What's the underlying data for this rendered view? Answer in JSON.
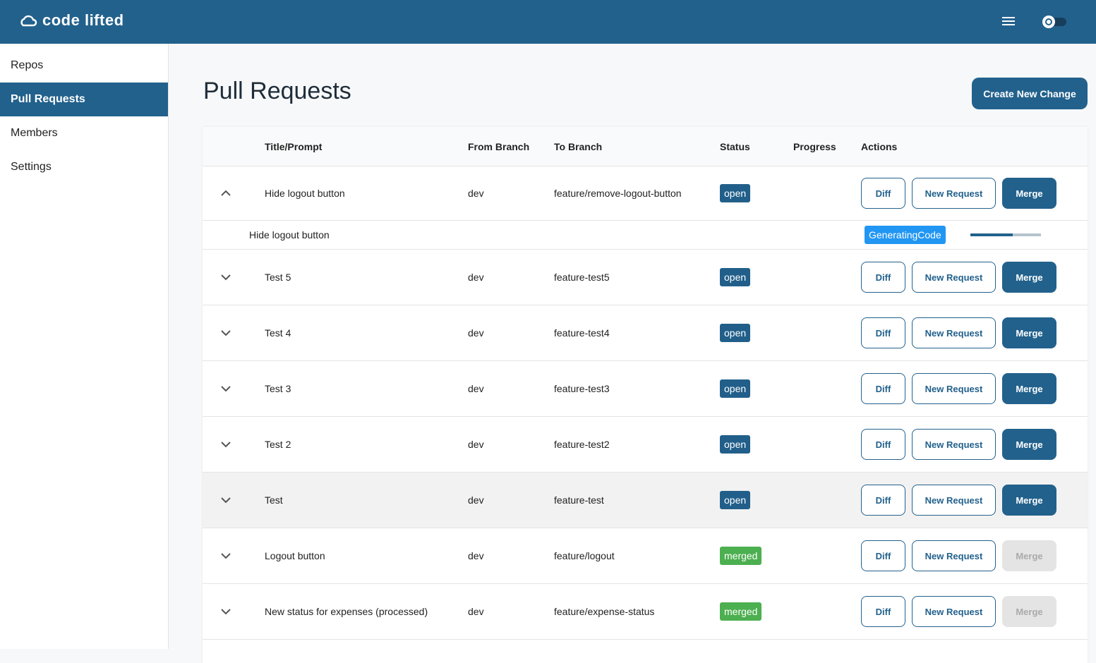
{
  "header": {
    "brand": "code lifted"
  },
  "sidebar": {
    "items": [
      "Repos",
      "Pull Requests",
      "Members",
      "Settings"
    ],
    "active": 1
  },
  "page": {
    "title": "Pull Requests",
    "create_button": "Create New Change"
  },
  "table": {
    "columns": [
      "Title/Prompt",
      "From Branch",
      "To Branch",
      "Status",
      "Progress",
      "Actions"
    ],
    "actions": [
      "Diff",
      "New Request",
      "Merge"
    ],
    "status_colors": {
      "open": "#215f8a",
      "merged": "#4caf50"
    },
    "highlighted": 5,
    "rows": [
      {
        "title": "Hide logout button",
        "from": "dev",
        "to": "feature/remove-logout-button",
        "status": "open",
        "merge_enabled": true,
        "expanded": true,
        "sub": {
          "title": "Hide logout button",
          "state": "GeneratingCode",
          "progress": 60
        }
      },
      {
        "title": "Test 5",
        "from": "dev",
        "to": "feature-test5",
        "status": "open",
        "merge_enabled": true,
        "expanded": false
      },
      {
        "title": "Test 4",
        "from": "dev",
        "to": "feature-test4",
        "status": "open",
        "merge_enabled": true,
        "expanded": false
      },
      {
        "title": "Test 3",
        "from": "dev",
        "to": "feature-test3",
        "status": "open",
        "merge_enabled": true,
        "expanded": false
      },
      {
        "title": "Test 2",
        "from": "dev",
        "to": "feature-test2",
        "status": "open",
        "merge_enabled": true,
        "expanded": false
      },
      {
        "title": "Test",
        "from": "dev",
        "to": "feature-test",
        "status": "open",
        "merge_enabled": true,
        "expanded": false
      },
      {
        "title": "Logout button",
        "from": "dev",
        "to": "feature/logout",
        "status": "merged",
        "merge_enabled": false,
        "expanded": false
      },
      {
        "title": "New status for expenses (processed)",
        "from": "dev",
        "to": "feature/expense-status",
        "status": "merged",
        "merge_enabled": false,
        "expanded": false
      }
    ]
  }
}
